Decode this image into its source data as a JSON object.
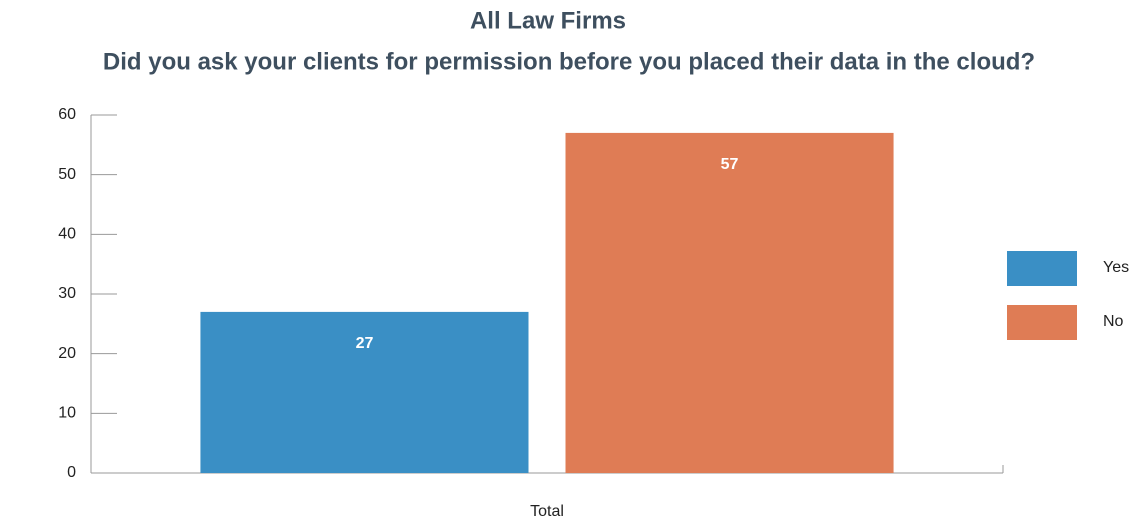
{
  "chart_data": {
    "type": "bar",
    "title": "All Law Firms",
    "subtitle": "Did you ask your clients for permission before you placed their data in the cloud?",
    "categories": [
      "Total"
    ],
    "series": [
      {
        "name": "Yes",
        "color": "#3a8fc5",
        "values": [
          27
        ]
      },
      {
        "name": "No",
        "color": "#df7c55",
        "values": [
          57
        ]
      }
    ],
    "ylim": [
      0,
      60
    ],
    "yticks": [
      0,
      10,
      20,
      30,
      40,
      50,
      60
    ],
    "legend": "right",
    "data_labels": true
  }
}
